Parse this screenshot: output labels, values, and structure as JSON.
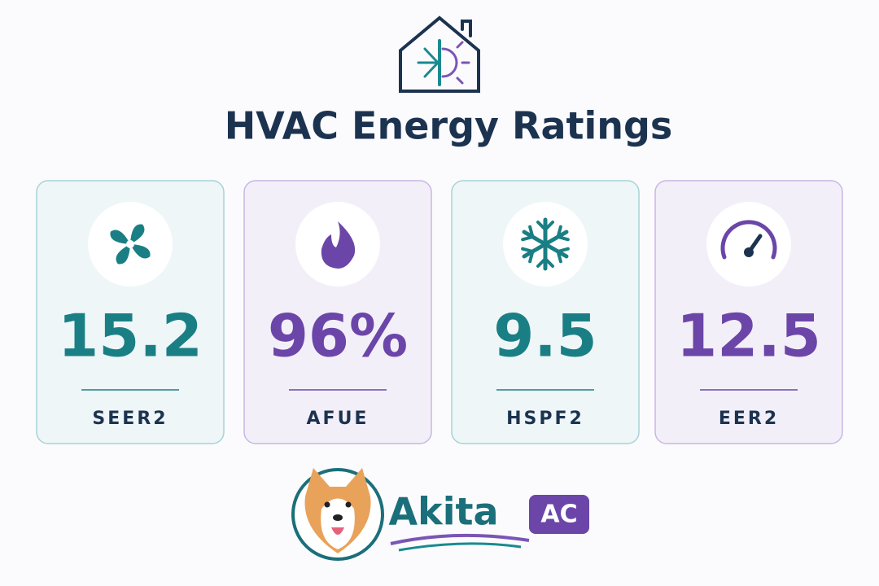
{
  "header": {
    "title": "HVAC Energy Ratings"
  },
  "cards": [
    {
      "value": "15.2",
      "label": "SEER2"
    },
    {
      "value": "96%",
      "label": "AFUE"
    },
    {
      "value": "9.5",
      "label": "HSPF2"
    },
    {
      "value": "12.5",
      "label": "EER2"
    }
  ],
  "brand": {
    "name": "Akita",
    "badge": "AC"
  }
}
